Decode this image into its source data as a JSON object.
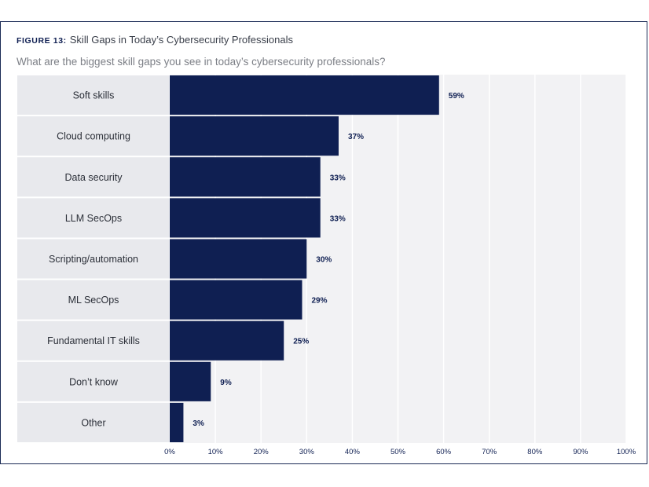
{
  "figure": {
    "label": "FIGURE 13:",
    "title": "Skill Gaps in Today’s Cybersecurity Professionals",
    "subtitle": "What are the biggest skill gaps you see in today’s cybersecurity professionals?"
  },
  "chart_data": {
    "type": "bar",
    "orientation": "horizontal",
    "title": "Skill Gaps in Today’s Cybersecurity Professionals",
    "xlabel": "",
    "ylabel": "",
    "xlim": [
      0,
      100
    ],
    "unit": "%",
    "grid": true,
    "categories": [
      "Soft skills",
      "Cloud computing",
      "Data security",
      "LLM SecOps",
      "Scripting/automation",
      "ML SecOps",
      "Fundamental IT skills",
      "Don’t know",
      "Other"
    ],
    "values": [
      59,
      37,
      33,
      33,
      30,
      29,
      25,
      9,
      3
    ],
    "value_labels": [
      "59%",
      "37%",
      "33%",
      "33%",
      "30%",
      "29%",
      "25%",
      "9%",
      "3%"
    ],
    "ticks": [
      0,
      10,
      20,
      30,
      40,
      50,
      60,
      70,
      80,
      90,
      100
    ],
    "tick_labels": [
      "0%",
      "10%",
      "20%",
      "30%",
      "40%",
      "50%",
      "60%",
      "70%",
      "80%",
      "90%",
      "100%"
    ],
    "colors": {
      "bar": "#0f1f52",
      "category_band": "#e8e9ed",
      "plot_background": "#f2f2f4",
      "grid": "#ffffff"
    }
  }
}
